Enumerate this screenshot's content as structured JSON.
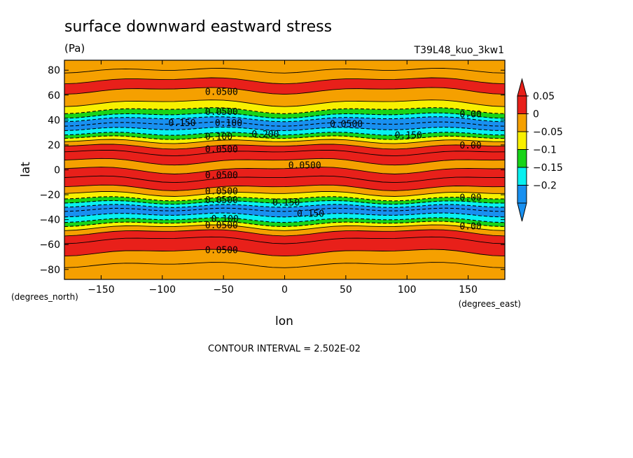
{
  "chart_data": {
    "type": "heatmap",
    "title": "surface downward eastward stress",
    "units": "(Pa)",
    "run_label": "T39L48_kuo_3kw1",
    "xlabel": "lon",
    "ylabel": "lat",
    "x_unit_label": "(degrees_east)",
    "y_unit_label": "(degrees_north)",
    "xlim": [
      -180,
      180
    ],
    "ylim": [
      -88,
      88
    ],
    "x_ticks": [
      -150,
      -100,
      -50,
      0,
      50,
      100,
      150
    ],
    "y_ticks": [
      -80,
      -60,
      -40,
      -20,
      0,
      20,
      40,
      60,
      80
    ],
    "x_tick_labels": [
      "−150",
      "−100",
      "−50",
      "0",
      "50",
      "100",
      "150"
    ],
    "y_tick_labels": [
      "−80",
      "−60",
      "−40",
      "−20",
      "0",
      "20",
      "40",
      "60",
      "80"
    ],
    "footer": "CONTOUR INTERVAL = 2.502E-02",
    "colorbar": {
      "levels": [
        0.05,
        0,
        -0.05,
        -0.1,
        -0.15,
        -0.2
      ],
      "level_labels": [
        "0.05",
        "0",
        "−0.05",
        "−0.1",
        "−0.15",
        "−0.2"
      ],
      "colors": [
        "#e8201a",
        "#f5a000",
        "#f8f000",
        "#18d418",
        "#08f0f0",
        "#1890f0"
      ],
      "over_color": "#e8201a",
      "under_color": "#1890f0"
    },
    "zonal_profile": {
      "lat": [
        -88,
        -76,
        -66,
        -56,
        -50,
        -46,
        -43,
        -40,
        -36,
        -32,
        -29,
        -26,
        -23,
        -19,
        -14,
        -7,
        0,
        7,
        14,
        19,
        23,
        26,
        29,
        33,
        37,
        41,
        44,
        48,
        54,
        64,
        72,
        80,
        88
      ],
      "band_color": [
        "#f5a000",
        "#f5a000",
        "#e8201a",
        "#e8201a",
        "#f5a000",
        "#f8f000",
        "#18d418",
        "#08f0f0",
        "#1890f0",
        "#1890f0",
        "#08f0f0",
        "#18d418",
        "#f8f000",
        "#f5a000",
        "#e8201a",
        "#e8201a",
        "#f5a000",
        "#e8201a",
        "#e8201a",
        "#f5a000",
        "#f8f000",
        "#18d418",
        "#08f0f0",
        "#1890f0",
        "#1890f0",
        "#08f0f0",
        "#18d418",
        "#f8f000",
        "#f5a000",
        "#e8201a",
        "#f5a000",
        "#f5a000"
      ]
    },
    "contour_labels": [
      {
        "text": "0.0500",
        "lon": -65,
        "lat": 63
      },
      {
        "text": "0.0500",
        "lon": -65,
        "lat": 47
      },
      {
        "text": "0.150",
        "lon": -95,
        "lat": 38
      },
      {
        "text": "0.100",
        "lon": -57,
        "lat": 38
      },
      {
        "text": "0.100",
        "lon": -65,
        "lat": 27
      },
      {
        "text": "0.200",
        "lon": -27,
        "lat": 29
      },
      {
        "text": "0.0500",
        "lon": -65,
        "lat": 17
      },
      {
        "text": "0.0500",
        "lon": 37,
        "lat": 37
      },
      {
        "text": "0.150",
        "lon": 90,
        "lat": 28
      },
      {
        "text": "0.00",
        "lon": 143,
        "lat": 45
      },
      {
        "text": "0.00",
        "lon": 143,
        "lat": 20
      },
      {
        "text": "0.0500",
        "lon": 3,
        "lat": 4
      },
      {
        "text": "0.0500",
        "lon": -65,
        "lat": -4
      },
      {
        "text": "0.0500",
        "lon": -65,
        "lat": -17
      },
      {
        "text": "0.0500",
        "lon": -65,
        "lat": -24
      },
      {
        "text": "0.150",
        "lon": -10,
        "lat": -26
      },
      {
        "text": "0.150",
        "lon": 10,
        "lat": -35
      },
      {
        "text": "0.100",
        "lon": -60,
        "lat": -39
      },
      {
        "text": "0.0500",
        "lon": -65,
        "lat": -44
      },
      {
        "text": "0.00",
        "lon": 143,
        "lat": -22
      },
      {
        "text": "0.00",
        "lon": 143,
        "lat": -45
      },
      {
        "text": "0.0500",
        "lon": -65,
        "lat": -64
      }
    ]
  }
}
